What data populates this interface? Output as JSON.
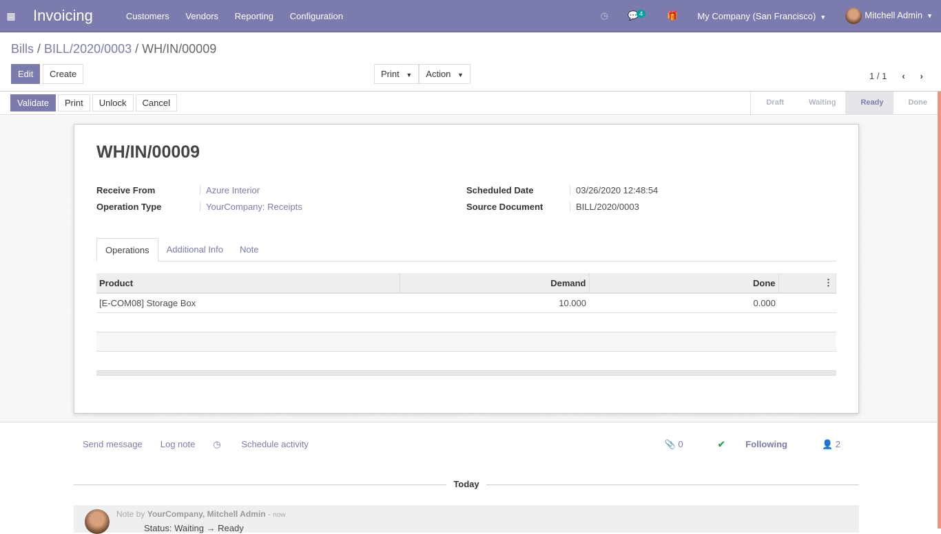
{
  "nav": {
    "app": "Invoicing",
    "menu": [
      "Customers",
      "Vendors",
      "Reporting",
      "Configuration"
    ],
    "chat_count": "4",
    "company": "My Company (San Francisco)",
    "user": "Mitchell Admin"
  },
  "breadcrumb": {
    "b1": "Bills",
    "b2": "BILL/2020/0003",
    "current": "WH/IN/00009"
  },
  "buttons": {
    "edit": "Edit",
    "create": "Create",
    "print": "Print",
    "action": "Action",
    "pager": "1 / 1"
  },
  "statusbar": {
    "validate": "Validate",
    "print": "Print",
    "unlock": "Unlock",
    "cancel": "Cancel",
    "steps": [
      "Draft",
      "Waiting",
      "Ready",
      "Done"
    ],
    "active": "Ready"
  },
  "form": {
    "title": "WH/IN/00009",
    "receive_from_label": "Receive From",
    "receive_from": "Azure Interior",
    "operation_type_label": "Operation Type",
    "operation_type": "YourCompany: Receipts",
    "scheduled_date_label": "Scheduled Date",
    "scheduled_date": "03/26/2020 12:48:54",
    "source_document_label": "Source Document",
    "source_document": "BILL/2020/0003"
  },
  "tabs": [
    "Operations",
    "Additional Info",
    "Note"
  ],
  "table": {
    "headers": [
      "Product",
      "Demand",
      "Done"
    ],
    "rows": [
      {
        "product": "[E-COM08] Storage Box",
        "demand": "10.000",
        "done": "0.000"
      }
    ]
  },
  "chatter": {
    "send": "Send message",
    "log": "Log note",
    "schedule": "Schedule activity",
    "attachments": "0",
    "following": "Following",
    "followers": "2",
    "today": "Today",
    "note_prefix": "Note by",
    "note_author": "YourCompany, Mitchell Admin",
    "note_time": "now",
    "note_body": "Status: Waiting → Ready"
  }
}
